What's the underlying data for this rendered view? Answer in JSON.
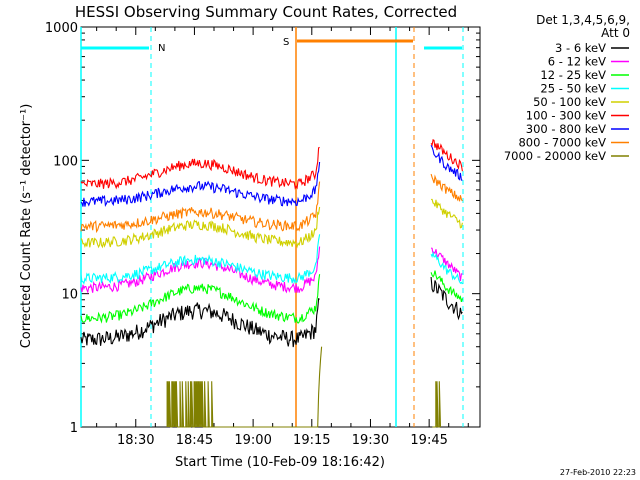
{
  "chart_data": {
    "type": "line",
    "title": "HESSI Observing Summary Count Rates, Corrected",
    "xlabel": "Start Time (10-Feb-09 18:16:42)",
    "ylabel": "Corrected Count Rate (s⁻¹ detector⁻¹)",
    "yscale": "log",
    "ylim": [
      1,
      1000
    ],
    "xlim_minutes_after_1816": [
      0,
      102
    ],
    "x_ticks": [
      {
        "label": "18:30",
        "minutes": 14
      },
      {
        "label": "18:45",
        "minutes": 29
      },
      {
        "label": "19:00",
        "minutes": 44
      },
      {
        "label": "19:15",
        "minutes": 59
      },
      {
        "label": "19:30",
        "minutes": 74
      },
      {
        "label": "19:45",
        "minutes": 89
      }
    ],
    "y_ticks": [
      {
        "label": "1",
        "value": 1
      },
      {
        "label": "10",
        "value": 10
      },
      {
        "label": "100",
        "value": 100
      },
      {
        "label": "1000",
        "value": 1000
      }
    ],
    "legend_header": [
      "Det 1,3,4,5,6,9,",
      "Att 0"
    ],
    "legend_placement": "right",
    "series": [
      {
        "name": "3 - 6 keV",
        "color": "#000000",
        "profile": {
          "base": 4.5,
          "peak": 7.5,
          "end": 5.5,
          "after": [
            12,
            9,
            7
          ]
        }
      },
      {
        "name": "6 - 12 keV",
        "color": "#ff00ff",
        "profile": {
          "base": 11,
          "peak": 17,
          "end": 12,
          "after": [
            22,
            17,
            13
          ]
        }
      },
      {
        "name": "12 - 25 keV",
        "color": "#00ff00",
        "profile": {
          "base": 6.5,
          "peak": 11,
          "end": 7.5,
          "after": [
            15,
            11,
            9
          ]
        }
      },
      {
        "name": "25 - 50 keV",
        "color": "#00ffff",
        "profile": {
          "base": 13,
          "peak": 18,
          "end": 14,
          "after": [
            20,
            15,
            12
          ]
        }
      },
      {
        "name": "50 - 100 keV",
        "color": "#d0d000",
        "profile": {
          "base": 24,
          "peak": 33,
          "end": 25,
          "after": [
            50,
            40,
            33
          ]
        }
      },
      {
        "name": "100 - 300 keV",
        "color": "#ff0000",
        "profile": {
          "base": 66,
          "peak": 95,
          "end": 66,
          "after": [
            140,
            110,
            90
          ]
        }
      },
      {
        "name": "300 - 800 keV",
        "color": "#0000ff",
        "profile": {
          "base": 49,
          "peak": 64,
          "end": 49,
          "after": [
            120,
            90,
            74
          ]
        }
      },
      {
        "name": "800 - 7000 keV",
        "color": "#ff8000",
        "profile": {
          "base": 32,
          "peak": 41,
          "end": 30,
          "after": [
            75,
            60,
            50
          ]
        }
      },
      {
        "name": "7000 - 20000 keV",
        "color": "#808000",
        "profile": {
          "base": 1,
          "peak": 2.2,
          "end": 1,
          "after": [
            2.2,
            1.5,
            1
          ]
        }
      }
    ],
    "flags": [
      {
        "label": "N",
        "color": "#00ffff"
      },
      {
        "label": "S",
        "color": "#ff8000"
      }
    ]
  },
  "footer": {
    "timestamp": "27-Feb-2010 22:23"
  }
}
